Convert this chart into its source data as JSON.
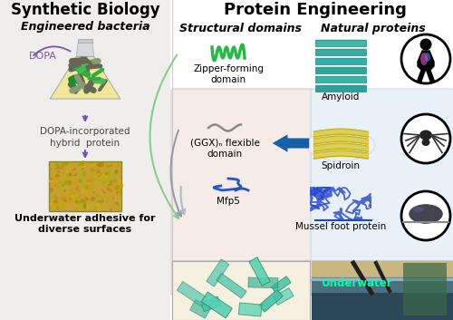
{
  "title_left": "Synthetic Biology",
  "title_right": "Protein Engineering",
  "subtitle_bacteria": "Engineered bacteria",
  "label_dopa": "DOPA",
  "label_hybrid": "DOPA-incorporated\nhybrid  protein",
  "label_adhesive": "Underwater adhesive for\ndiverse surfaces",
  "subtitle_structural": "Structural domains",
  "subtitle_natural": "Natural proteins",
  "label_zipper": "Zipper-forming\ndomain",
  "label_ggx": "(GGX)ₙ flexible\ndomain",
  "label_mfp5": "Mfp5",
  "label_amyloid": "Amyloid",
  "label_spidroin": "Spidroin",
  "label_mussel": "Mussel foot protein",
  "label_underwater": "Underwater",
  "bg_left": "#f0eeec",
  "structural_bg": "#f5ece8",
  "natural_bg": "#e8f0f8",
  "green_color": "#22bb44",
  "blue_color": "#2255cc",
  "teal_color": "#30b0a8",
  "purple_color": "#7755aa",
  "gray_color": "#909090",
  "arrow_blue": "#1a5faa",
  "arrow_green": "#66bb66",
  "arrow_gray": "#8888aa",
  "arrow_light_blue": "#99aabb"
}
